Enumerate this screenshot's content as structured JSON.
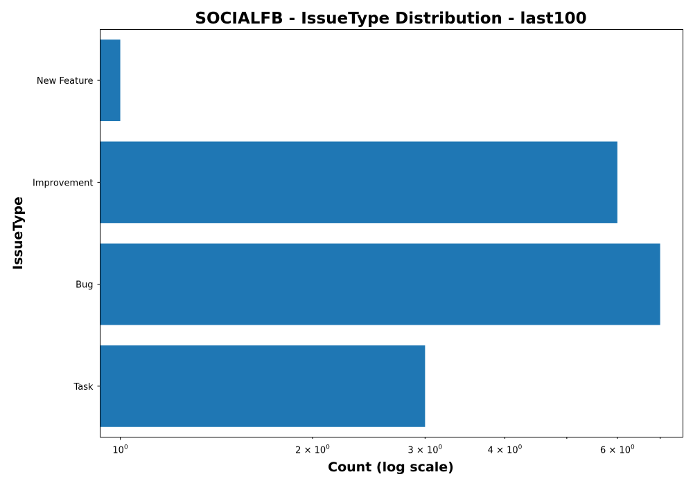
{
  "chart_data": {
    "type": "bar",
    "orientation": "horizontal",
    "title": "SOCIALFB - IssueType Distribution - last100",
    "xlabel": "Count (log scale)",
    "ylabel": "IssueType",
    "xscale": "log",
    "xlim": [
      0.93,
      7.6
    ],
    "categories": [
      "Task",
      "Bug",
      "Improvement",
      "New Feature"
    ],
    "values": [
      3,
      7,
      6,
      1
    ],
    "bar_color": "#1f77b4",
    "x_major_ticks": [
      {
        "value": 1,
        "base": "10",
        "exp": "0"
      }
    ],
    "x_minor_ticks": [
      {
        "value": 2,
        "coef": "2",
        "base": "10",
        "exp": "0"
      },
      {
        "value": 3,
        "coef": "3",
        "base": "10",
        "exp": "0"
      },
      {
        "value": 4,
        "coef": "4",
        "base": "10",
        "exp": "0"
      },
      {
        "value": 6,
        "coef": "6",
        "base": "10",
        "exp": "0"
      }
    ],
    "x_minor_ticks_unlabeled": [
      5,
      7
    ],
    "grid": false,
    "legend": "none"
  }
}
